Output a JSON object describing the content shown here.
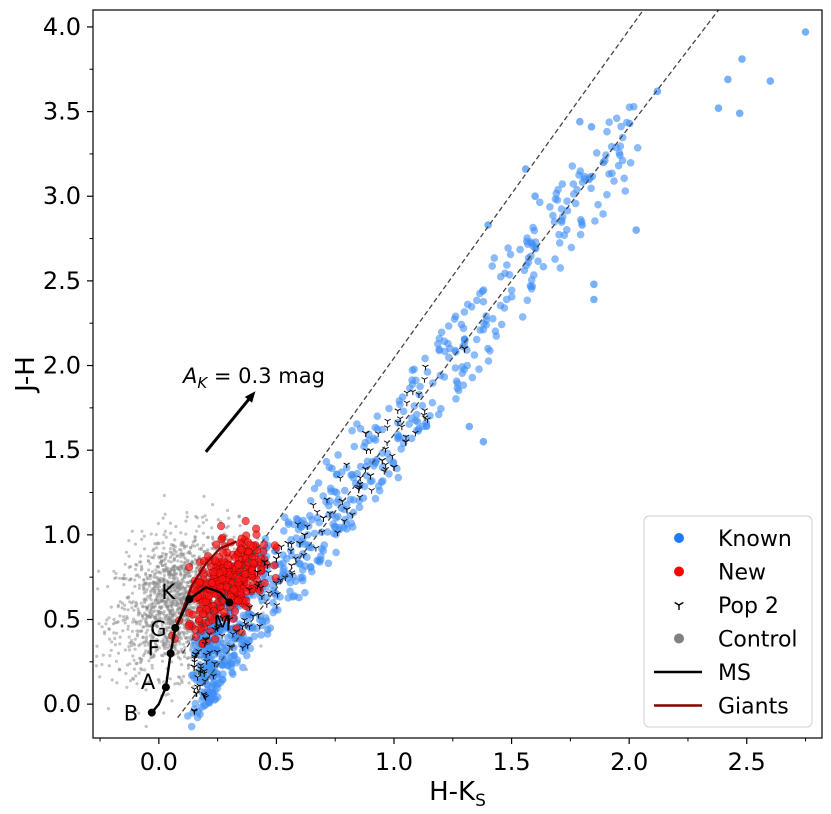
{
  "chart_data": {
    "type": "scatter",
    "xlabel": "H-K",
    "xlabel_sub": "S",
    "ylabel": "J-H",
    "xlim": [
      -0.28,
      2.82
    ],
    "ylim": [
      -0.2,
      4.1
    ],
    "x_ticks": [
      0.0,
      0.5,
      1.0,
      1.5,
      2.0,
      2.5
    ],
    "x_tick_labels": [
      "0.0",
      "0.5",
      "1.0",
      "1.5",
      "2.0",
      "2.5"
    ],
    "y_ticks": [
      0.0,
      0.5,
      1.0,
      1.5,
      2.0,
      2.5,
      3.0,
      3.5,
      4.0
    ],
    "y_tick_labels": [
      "0.0",
      "0.5",
      "1.0",
      "1.5",
      "2.0",
      "2.5",
      "3.0",
      "3.5",
      "4.0"
    ],
    "grid": false,
    "legend": {
      "placement": "bottom-right",
      "entries": [
        {
          "label": "Known",
          "kind": "dot",
          "color": "#1f7bf5"
        },
        {
          "label": "New",
          "kind": "dot",
          "color": "#ff0000"
        },
        {
          "label": "Pop 2",
          "kind": "tri",
          "color": "#000000"
        },
        {
          "label": "Control",
          "kind": "dot",
          "color": "#808080"
        },
        {
          "label": "MS",
          "kind": "line",
          "color": "#000000"
        },
        {
          "label": "Giants",
          "kind": "line",
          "color": "#8b0000"
        }
      ]
    },
    "annotation": {
      "text_prefix": "A",
      "text_sub": "K",
      "text_suffix": " = 0.3 mag",
      "arrow_from": [
        0.2,
        1.49
      ],
      "arrow_to": [
        0.4,
        1.83
      ]
    },
    "reddening_lines": [
      {
        "from": [
          0.1,
          0.3
        ],
        "to": [
          2.06,
          4.1
        ]
      },
      {
        "from": [
          0.08,
          -0.08
        ],
        "to": [
          2.38,
          4.1
        ]
      }
    ],
    "ms_track": {
      "points": [
        [
          -0.03,
          -0.05
        ],
        [
          0.0,
          0.0
        ],
        [
          0.03,
          0.1
        ],
        [
          0.05,
          0.3
        ],
        [
          0.07,
          0.45
        ],
        [
          0.13,
          0.62
        ],
        [
          0.2,
          0.69
        ],
        [
          0.26,
          0.66
        ],
        [
          0.3,
          0.6
        ]
      ],
      "marked": [
        {
          "label": "B",
          "x": -0.03,
          "y": -0.05
        },
        {
          "label": "A",
          "x": 0.03,
          "y": 0.1
        },
        {
          "label": "F",
          "x": 0.05,
          "y": 0.3
        },
        {
          "label": "G",
          "x": 0.07,
          "y": 0.45
        },
        {
          "label": "K",
          "x": 0.13,
          "y": 0.62
        },
        {
          "label": "M",
          "x": 0.3,
          "y": 0.6
        }
      ]
    },
    "giants_track": {
      "points": [
        [
          0.06,
          0.4
        ],
        [
          0.1,
          0.55
        ],
        [
          0.14,
          0.7
        ],
        [
          0.2,
          0.83
        ],
        [
          0.26,
          0.92
        ],
        [
          0.33,
          0.96
        ]
      ]
    },
    "known_sample_points": [
      [
        2.75,
        3.97
      ],
      [
        2.48,
        3.81
      ],
      [
        2.42,
        3.69
      ],
      [
        2.6,
        3.68
      ],
      [
        2.38,
        3.52
      ],
      [
        2.47,
        3.49
      ],
      [
        2.12,
        3.62
      ],
      [
        1.79,
        3.44
      ],
      [
        1.84,
        3.41
      ],
      [
        1.89,
        3.2
      ],
      [
        1.83,
        3.1
      ],
      [
        2.03,
        2.8
      ],
      [
        1.8,
        2.83
      ],
      [
        1.85,
        2.48
      ],
      [
        1.85,
        2.39
      ],
      [
        1.56,
        3.16
      ],
      [
        1.6,
        3.0
      ],
      [
        1.4,
        2.83
      ],
      [
        1.58,
        2.47
      ],
      [
        1.38,
        1.55
      ],
      [
        1.32,
        1.64
      ]
    ],
    "pop2_sample_points": [
      [
        0.5,
        0.86
      ],
      [
        0.55,
        0.95
      ],
      [
        0.62,
        1.0
      ],
      [
        0.7,
        1.1
      ],
      [
        0.78,
        1.2
      ],
      [
        0.85,
        1.27
      ],
      [
        0.9,
        1.35
      ],
      [
        0.95,
        1.44
      ],
      [
        1.05,
        1.55
      ],
      [
        1.3,
        2.1
      ],
      [
        0.45,
        0.84
      ],
      [
        0.6,
        0.95
      ],
      [
        0.8,
        1.15
      ],
      [
        0.2,
        0.38
      ],
      [
        0.25,
        0.45
      ],
      [
        0.15,
        0.22
      ],
      [
        0.3,
        0.5
      ],
      [
        0.42,
        0.78
      ],
      [
        0.88,
        1.6
      ],
      [
        1.0,
        1.4
      ]
    ]
  }
}
